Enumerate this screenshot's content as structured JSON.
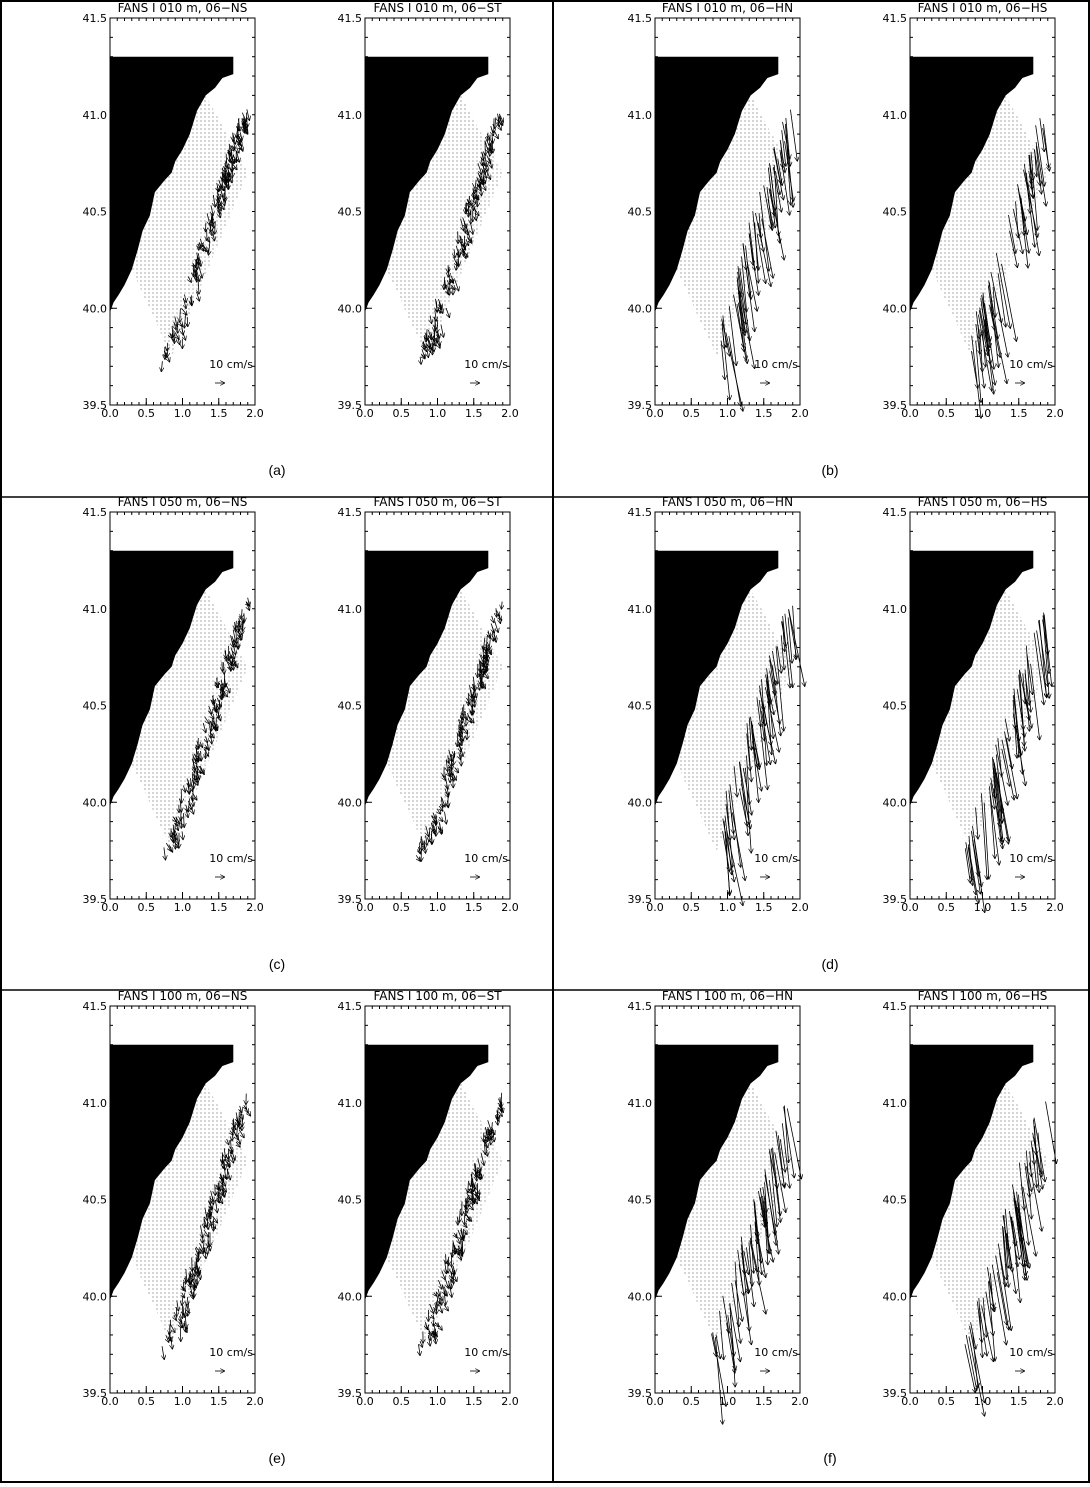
{
  "panel_labels": [
    "(a)",
    "(b)",
    "(c)",
    "(d)",
    "(e)",
    "(f)"
  ],
  "chart_data": [
    {
      "type": "quiver",
      "title": "FANS I 010 m, 06−NS",
      "scale_label": "10 cm/s",
      "xlim": [
        0,
        2
      ],
      "ylim": [
        39.5,
        41.5
      ],
      "xticks": [
        {
          "value": 0,
          "label": "0.0"
        },
        {
          "value": 0.5,
          "label": "0.5"
        },
        {
          "value": 1,
          "label": "1.0"
        },
        {
          "value": 1.5,
          "label": "1.5"
        },
        {
          "value": 2,
          "label": "2.0"
        }
      ],
      "yticks": [
        39.5,
        40.0,
        40.5,
        41.0,
        41.5
      ]
    },
    {
      "type": "quiver",
      "title": "FANS I 010 m, 06−ST",
      "scale_label": "10 cm/s",
      "xlim": [
        0,
        2
      ],
      "ylim": [
        39.5,
        41.5
      ],
      "xticks": [
        {
          "value": 0,
          "label": "0.0"
        },
        {
          "value": 0.5,
          "label": "0.5"
        },
        {
          "value": 1,
          "label": "1.0"
        },
        {
          "value": 1.5,
          "label": "1.5"
        },
        {
          "value": 2,
          "label": "2.0"
        }
      ],
      "yticks": [
        39.5,
        40.0,
        40.5,
        41.0,
        41.5
      ]
    },
    {
      "type": "quiver",
      "title": "FANS I 010 m, 06−HN",
      "scale_label": "10 cm/s",
      "xlim": [
        0,
        2
      ],
      "ylim": [
        39.5,
        41.5
      ],
      "xticks": [
        {
          "value": 0,
          "label": "0.0"
        },
        {
          "value": 0.5,
          "label": "0.5"
        },
        {
          "value": 1,
          "label": "1.0"
        },
        {
          "value": 1.5,
          "label": "1.5"
        },
        {
          "value": 2,
          "label": "2.0"
        }
      ],
      "yticks": [
        39.5,
        40.0,
        40.5,
        41.0,
        41.5
      ]
    },
    {
      "type": "quiver",
      "title": "FANS I 010 m, 06−HS",
      "scale_label": "10 cm/s",
      "xlim": [
        0,
        2
      ],
      "ylim": [
        39.5,
        41.5
      ],
      "xticks": [
        {
          "value": 0,
          "label": "0.0"
        },
        {
          "value": 0.5,
          "label": "0.5"
        },
        {
          "value": 1,
          "label": "1.0"
        },
        {
          "value": 1.5,
          "label": "1.5"
        },
        {
          "value": 2,
          "label": "2.0"
        }
      ],
      "yticks": [
        39.5,
        40.0,
        40.5,
        41.0,
        41.5
      ]
    },
    {
      "type": "quiver",
      "title": "FANS I 050 m, 06−NS",
      "scale_label": "10 cm/s",
      "xlim": [
        0,
        2
      ],
      "ylim": [
        39.5,
        41.5
      ],
      "xticks": [
        {
          "value": 0,
          "label": "0.0"
        },
        {
          "value": 0.5,
          "label": "0.5"
        },
        {
          "value": 1,
          "label": "1.0"
        },
        {
          "value": 1.5,
          "label": "1.5"
        },
        {
          "value": 2,
          "label": "2.0"
        }
      ],
      "yticks": [
        39.5,
        40.0,
        40.5,
        41.0,
        41.5
      ]
    },
    {
      "type": "quiver",
      "title": "FANS I 050 m, 06−ST",
      "scale_label": "10 cm/s",
      "xlim": [
        0,
        2
      ],
      "ylim": [
        39.5,
        41.5
      ],
      "xticks": [
        {
          "value": 0,
          "label": "0.0"
        },
        {
          "value": 0.5,
          "label": "0.5"
        },
        {
          "value": 1,
          "label": "1.0"
        },
        {
          "value": 1.5,
          "label": "1.5"
        },
        {
          "value": 2,
          "label": "2.0"
        }
      ],
      "yticks": [
        39.5,
        40.0,
        40.5,
        41.0,
        41.5
      ]
    },
    {
      "type": "quiver",
      "title": "FANS I 050 m, 06−HN",
      "scale_label": "10 cm/s",
      "xlim": [
        0,
        2
      ],
      "ylim": [
        39.5,
        41.5
      ],
      "xticks": [
        {
          "value": 0,
          "label": "0.0"
        },
        {
          "value": 0.5,
          "label": "0.5"
        },
        {
          "value": 1,
          "label": "1.0"
        },
        {
          "value": 1.5,
          "label": "1.5"
        },
        {
          "value": 2,
          "label": "2.0"
        }
      ],
      "yticks": [
        39.5,
        40.0,
        40.5,
        41.0,
        41.5
      ]
    },
    {
      "type": "quiver",
      "title": "FANS I 050 m, 06−HS",
      "scale_label": "10 cm/s",
      "xlim": [
        0,
        2
      ],
      "ylim": [
        39.5,
        41.5
      ],
      "xticks": [
        {
          "value": 0,
          "label": "0.0"
        },
        {
          "value": 0.5,
          "label": "0.5"
        },
        {
          "value": 1,
          "label": "1.0"
        },
        {
          "value": 1.5,
          "label": "1.5"
        },
        {
          "value": 2,
          "label": "2.0"
        }
      ],
      "yticks": [
        39.5,
        40.0,
        40.5,
        41.0,
        41.5
      ]
    },
    {
      "type": "quiver",
      "title": "FANS I 100 m, 06−NS",
      "scale_label": "10 cm/s",
      "xlim": [
        0,
        2
      ],
      "ylim": [
        39.5,
        41.5
      ],
      "xticks": [
        {
          "value": 0,
          "label": "0.0"
        },
        {
          "value": 0.5,
          "label": "0.5"
        },
        {
          "value": 1,
          "label": "1.0"
        },
        {
          "value": 1.5,
          "label": "1.5"
        },
        {
          "value": 2,
          "label": "2.0"
        }
      ],
      "yticks": [
        39.5,
        40.0,
        40.5,
        41.0,
        41.5
      ]
    },
    {
      "type": "quiver",
      "title": "FANS I 100 m, 06−ST",
      "scale_label": "10 cm/s",
      "xlim": [
        0,
        2
      ],
      "ylim": [
        39.5,
        41.5
      ],
      "xticks": [
        {
          "value": 0,
          "label": "0.0"
        },
        {
          "value": 0.5,
          "label": "0.5"
        },
        {
          "value": 1,
          "label": "1.0"
        },
        {
          "value": 1.5,
          "label": "1.5"
        },
        {
          "value": 2,
          "label": "2.0"
        }
      ],
      "yticks": [
        39.5,
        40.0,
        40.5,
        41.0,
        41.5
      ]
    },
    {
      "type": "quiver",
      "title": "FANS I 100 m, 06−HN",
      "scale_label": "10 cm/s",
      "xlim": [
        0,
        2
      ],
      "ylim": [
        39.5,
        41.5
      ],
      "xticks": [
        {
          "value": 0,
          "label": "0.0"
        },
        {
          "value": 0.5,
          "label": "0.5"
        },
        {
          "value": 1,
          "label": "1.0"
        },
        {
          "value": 1.5,
          "label": "1.5"
        },
        {
          "value": 2,
          "label": "2.0"
        }
      ],
      "yticks": [
        39.5,
        40.0,
        40.5,
        41.0,
        41.5
      ]
    },
    {
      "type": "quiver",
      "title": "FANS I 100 m, 06−HS",
      "scale_label": "10 cm/s",
      "xlim": [
        0,
        2
      ],
      "ylim": [
        39.5,
        41.5
      ],
      "xticks": [
        {
          "value": 0,
          "label": "0.0"
        },
        {
          "value": 0.5,
          "label": "0.5"
        },
        {
          "value": 1,
          "label": "1.0"
        },
        {
          "value": 1.5,
          "label": "1.5"
        },
        {
          "value": 2,
          "label": "2.0"
        }
      ],
      "yticks": [
        39.5,
        40.0,
        40.5,
        41.0,
        41.5
      ]
    }
  ]
}
